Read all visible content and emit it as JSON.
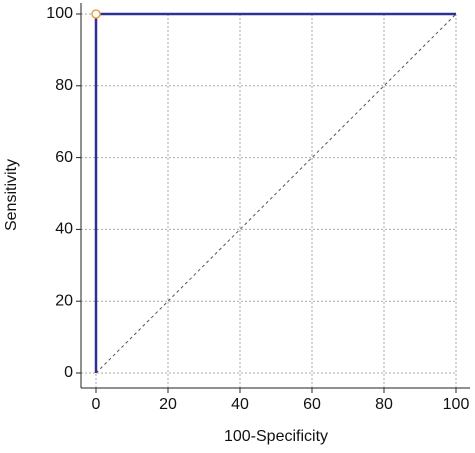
{
  "chart_data": {
    "type": "line",
    "x_label": "100-Specificity",
    "y_label": "Sensitivity",
    "x": [
      0,
      0,
      100
    ],
    "series": [
      {
        "color": "#2e3192",
        "values": [
          0,
          100,
          100
        ]
      }
    ],
    "highlight": {
      "x": 0,
      "y": 100,
      "color": "#e8a040"
    },
    "reference_diagonal": true,
    "xlim": [
      0,
      100
    ],
    "ylim": [
      0,
      100
    ],
    "xticks": [
      0,
      20,
      40,
      60,
      80,
      100
    ],
    "yticks": [
      0,
      20,
      40,
      60,
      80,
      100
    ],
    "grid": true
  }
}
